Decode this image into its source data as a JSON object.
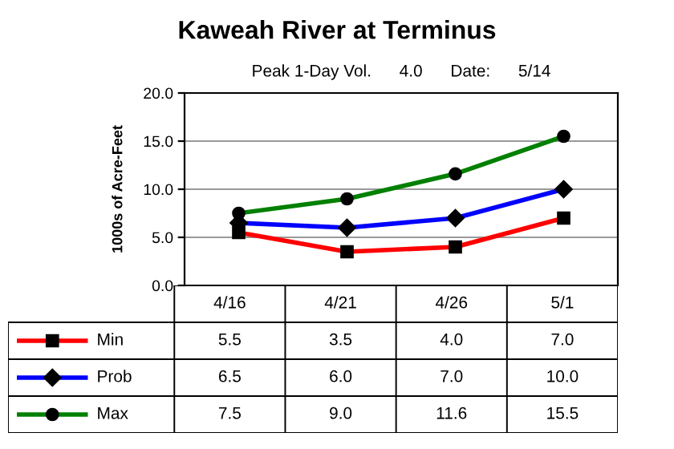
{
  "chart_data": {
    "type": "line",
    "title": "Kaweah River at Terminus",
    "subtitle": "Peak 1-Day Vol.      4.0      Date:      5/14",
    "ylabel": "1000s of Acre-Feet",
    "categories": [
      "4/16",
      "4/21",
      "4/26",
      "5/1"
    ],
    "series": [
      {
        "name": "Min",
        "color": "#ff0000",
        "marker": "square",
        "values": [
          5.5,
          3.5,
          4.0,
          7.0
        ],
        "value_labels": [
          "5.5",
          "3.5",
          "4.0",
          "7.0"
        ]
      },
      {
        "name": "Prob",
        "color": "#0000ff",
        "marker": "diamond",
        "values": [
          6.5,
          6.0,
          7.0,
          10.0
        ],
        "value_labels": [
          "6.5",
          "6.0",
          "7.0",
          "10.0"
        ]
      },
      {
        "name": "Max",
        "color": "#008000",
        "marker": "circle",
        "values": [
          7.5,
          9.0,
          11.6,
          15.5
        ],
        "value_labels": [
          "7.5",
          "9.0",
          "11.6",
          "15.5"
        ]
      }
    ],
    "ylim": [
      0,
      20
    ],
    "yticks": [
      {
        "value": 0,
        "label": "0.0"
      },
      {
        "value": 5,
        "label": "5.0"
      },
      {
        "value": 10,
        "label": "10.0"
      },
      {
        "value": 15,
        "label": "15.0"
      },
      {
        "value": 20,
        "label": "20.0"
      }
    ],
    "grid": "y",
    "legend": "bottom left",
    "line_style": "solid"
  }
}
